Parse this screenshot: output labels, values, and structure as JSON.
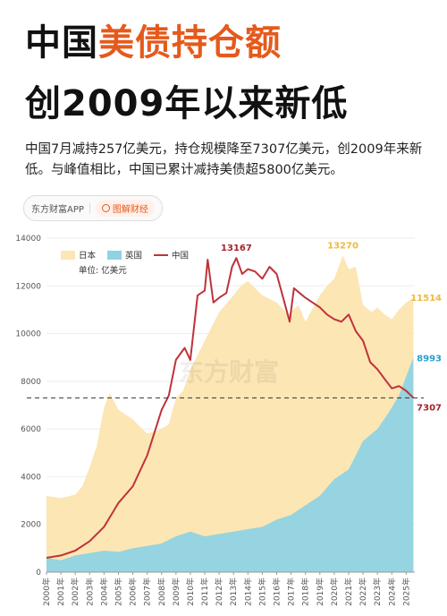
{
  "title": {
    "line1_plain": "中国",
    "line1_accent": "美债持仓额",
    "line2": "创2009年以来新低"
  },
  "subtitle": "中国7月减持257亿美元，持仓规模降至7307亿美元，创2009年来新低。与峰值相比，中国已累计减持美债超5800亿美元。",
  "brand": {
    "app": "东方财富APP",
    "tag": "图解财经",
    "watermark": "东方财富"
  },
  "colors": {
    "accent": "#e55a1c",
    "japan": "#fbe6b4",
    "uk": "#8fd3e3",
    "china": "#c0323a",
    "japan_label": "#f0b93a",
    "uk_label": "#2a9fd0",
    "china_label": "#a5232b"
  },
  "chart_data": {
    "type": "area",
    "unit_label": "单位: 亿美元",
    "ylim": [
      0,
      14000
    ],
    "y_ticks": [
      0,
      2000,
      4000,
      6000,
      8000,
      10000,
      12000,
      14000
    ],
    "x_ticks": [
      "2000年",
      "2001年",
      "2002年",
      "2003年",
      "2004年",
      "2005年",
      "2006年",
      "2007年",
      "2008年",
      "2009年",
      "2010年",
      "2011年",
      "2012年",
      "2013年",
      "2014年",
      "2015年",
      "2016年",
      "2017年",
      "2018年",
      "2019年",
      "2020年",
      "2021年",
      "2022年",
      "2023年",
      "2024年",
      "2025年"
    ],
    "reference_line": 7307,
    "legend": [
      "日本",
      "英国",
      "中国"
    ],
    "series": [
      {
        "name": "日本",
        "x": [
          2000.0,
          2001.0,
          2002.0,
          2002.5,
          2003.0,
          2003.5,
          2004.0,
          2004.4,
          2005.0,
          2006.0,
          2007.0,
          2008.0,
          2008.5,
          2009.0,
          2009.5,
          2010.0,
          2011.0,
          2012.0,
          2013.0,
          2013.5,
          2014.0,
          2015.0,
          2016.0,
          2016.8,
          2017.5,
          2018.0,
          2019.0,
          2019.5,
          2020.0,
          2020.6,
          2021.0,
          2021.5,
          2022.0,
          2022.6,
          2023.0,
          2023.5,
          2024.0,
          2024.5,
          2025.0,
          2025.5
        ],
        "values": [
          3200,
          3100,
          3250,
          3600,
          4400,
          5300,
          6900,
          7500,
          6800,
          6400,
          5800,
          6000,
          6200,
          7300,
          7600,
          8500,
          9700,
          10900,
          11600,
          12000,
          12200,
          11600,
          11300,
          10800,
          11200,
          10500,
          11600,
          12000,
          12300,
          13270,
          12700,
          12800,
          11200,
          10900,
          11100,
          10800,
          10600,
          11000,
          11300,
          11514
        ]
      },
      {
        "name": "英国",
        "x": [
          2000.0,
          2001.0,
          2002.0,
          2003.0,
          2004.0,
          2005.0,
          2006.0,
          2007.0,
          2008.0,
          2009.0,
          2010.0,
          2011.0,
          2012.0,
          2013.0,
          2014.0,
          2015.0,
          2016.0,
          2017.0,
          2018.0,
          2019.0,
          2020.0,
          2021.0,
          2022.0,
          2023.0,
          2023.8,
          2024.5,
          2025.0,
          2025.5
        ],
        "values": [
          600,
          500,
          700,
          800,
          900,
          850,
          1000,
          1100,
          1200,
          1500,
          1700,
          1500,
          1600,
          1700,
          1800,
          1900,
          2200,
          2400,
          2800,
          3200,
          3900,
          4300,
          5500,
          6000,
          6700,
          7400,
          8200,
          8993
        ]
      },
      {
        "name": "中国",
        "x": [
          2000.0,
          2001.0,
          2002.0,
          2003.0,
          2004.0,
          2005.0,
          2006.0,
          2007.0,
          2008.0,
          2008.5,
          2009.0,
          2009.6,
          2010.0,
          2010.5,
          2011.0,
          2011.2,
          2011.6,
          2012.0,
          2012.5,
          2012.9,
          2013.2,
          2013.6,
          2014.0,
          2014.5,
          2015.0,
          2015.5,
          2016.0,
          2016.5,
          2016.9,
          2017.2,
          2017.6,
          2018.0,
          2018.5,
          2019.0,
          2019.5,
          2020.0,
          2020.5,
          2021.0,
          2021.5,
          2022.0,
          2022.5,
          2023.0,
          2023.5,
          2024.0,
          2024.5,
          2025.0,
          2025.5
        ],
        "values": [
          600,
          700,
          900,
          1300,
          1900,
          2900,
          3600,
          4900,
          6800,
          7400,
          8900,
          9400,
          8900,
          11600,
          11800,
          13100,
          11300,
          11500,
          11700,
          12800,
          13167,
          12500,
          12700,
          12600,
          12300,
          12800,
          12500,
          11400,
          10500,
          11900,
          11700,
          11500,
          11300,
          11100,
          10800,
          10600,
          10500,
          10800,
          10100,
          9700,
          8800,
          8500,
          8100,
          7700,
          7800,
          7600,
          7307
        ]
      }
    ],
    "annotations": [
      {
        "text": "13167",
        "series": "中国",
        "x": 2013.2,
        "y": 13167
      },
      {
        "text": "13270",
        "series": "日本",
        "x": 2020.6,
        "y": 13270
      },
      {
        "text": "11514",
        "series": "日本",
        "x": 2025.5,
        "y": 11514
      },
      {
        "text": "8993",
        "series": "英国",
        "x": 2025.5,
        "y": 8993
      },
      {
        "text": "7307",
        "series": "中国",
        "x": 2025.5,
        "y": 7307
      }
    ]
  }
}
